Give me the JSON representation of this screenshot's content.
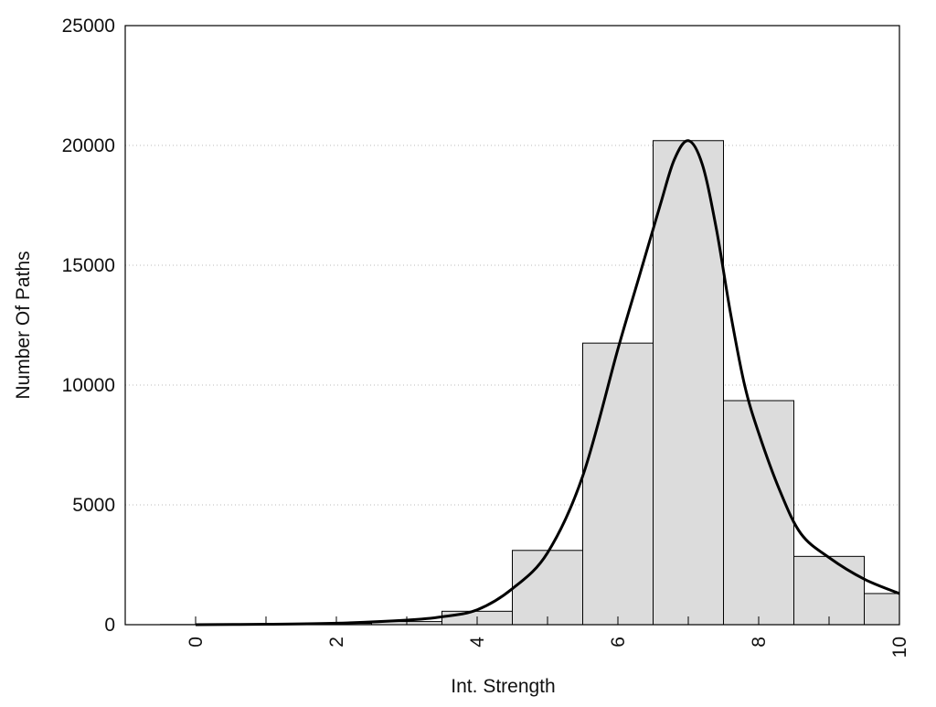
{
  "chart_data": {
    "type": "bar",
    "title": "",
    "xlabel": "Int. Strength",
    "ylabel": "Number Of Paths",
    "xlim": [
      -1,
      10
    ],
    "ylim": [
      0,
      25000
    ],
    "x_ticks": [
      "0",
      "2",
      "4",
      "6",
      "8",
      "10"
    ],
    "y_ticks": [
      "0",
      "5000",
      "10000",
      "15000",
      "20000",
      "25000"
    ],
    "grid": "horizontal dotted",
    "legend": "none",
    "bar_width": 1,
    "x": [
      0,
      1,
      2,
      3,
      4,
      5,
      6,
      7,
      8,
      9,
      10
    ],
    "values": [
      5,
      10,
      50,
      130,
      560,
      3100,
      11750,
      20200,
      9350,
      2850,
      1300
    ],
    "fit_curve": {
      "x": [
        0,
        1,
        2,
        3,
        3.5,
        4,
        4.5,
        5,
        5.5,
        6,
        6.3,
        6.6,
        6.8,
        7,
        7.2,
        7.4,
        7.6,
        7.8,
        8,
        8.3,
        8.6,
        9,
        9.5,
        10
      ],
      "y": [
        0,
        20,
        60,
        190,
        330,
        620,
        1500,
        3000,
        6200,
        11500,
        14500,
        17500,
        19400,
        20200,
        19200,
        16500,
        13000,
        10000,
        8000,
        5600,
        3800,
        2800,
        1900,
        1300
      ]
    },
    "colors": {
      "bar_fill": "#dcdcdc",
      "bar_stroke": "#000000",
      "curve": "#000000",
      "grid": "#bbbbbb"
    }
  }
}
